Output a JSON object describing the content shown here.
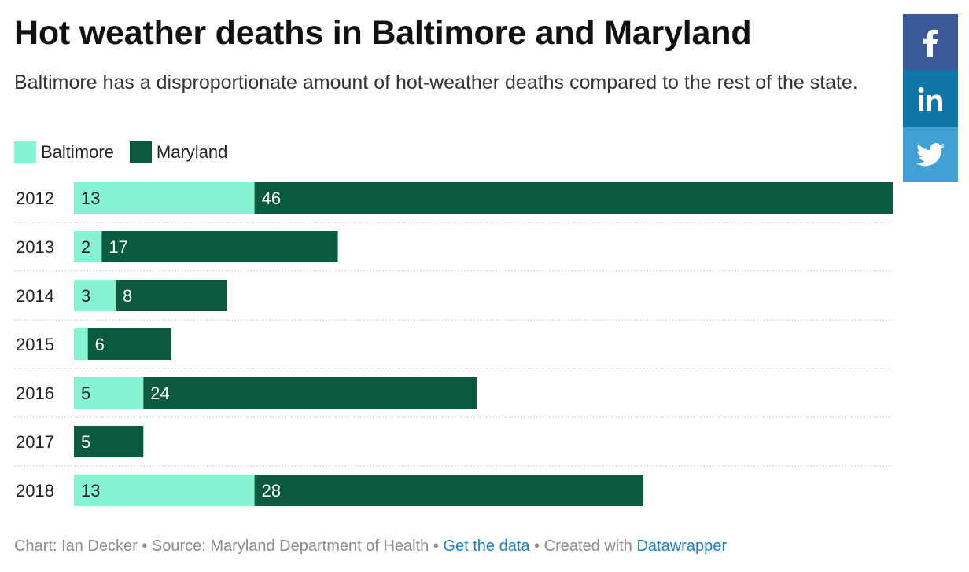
{
  "title": "Hot weather deaths in Baltimore and Maryland",
  "subtitle": "Baltimore has a disproportionate amount of hot-weather deaths compared to the rest of the state.",
  "footer": {
    "chart_by": "Chart: Ian Decker",
    "source": "Source: Maryland Department of Health",
    "get_data": "Get the data",
    "created_with": "Created with",
    "tool": "Datawrapper",
    "separator": "•"
  },
  "share": [
    {
      "name": "facebook",
      "icon": "facebook-icon",
      "color": "#3b5998"
    },
    {
      "name": "linkedin",
      "icon": "linkedin-icon",
      "color": "#0e76a8"
    },
    {
      "name": "twitter",
      "icon": "twitter-icon",
      "color": "#41a0d6"
    }
  ],
  "chart_data": {
    "type": "bar",
    "orientation": "horizontal",
    "stacked": true,
    "categories": [
      "2012",
      "2013",
      "2014",
      "2015",
      "2016",
      "2017",
      "2018"
    ],
    "series": [
      {
        "name": "Baltimore",
        "color": "#86f3d3",
        "values": [
          13,
          2,
          3,
          1,
          5,
          0,
          13
        ]
      },
      {
        "name": "Maryland",
        "color": "#0a5a40",
        "values": [
          46,
          17,
          8,
          6,
          24,
          5,
          28
        ]
      }
    ],
    "data_labels": {
      "Baltimore": [
        "13",
        "2",
        "3",
        "",
        "5",
        "",
        "13"
      ],
      "Maryland": [
        "46",
        "17",
        "8",
        "6",
        "24",
        "5",
        "28"
      ]
    },
    "xlim": [
      0,
      59
    ],
    "legend_position": "top-left",
    "grid": false
  }
}
